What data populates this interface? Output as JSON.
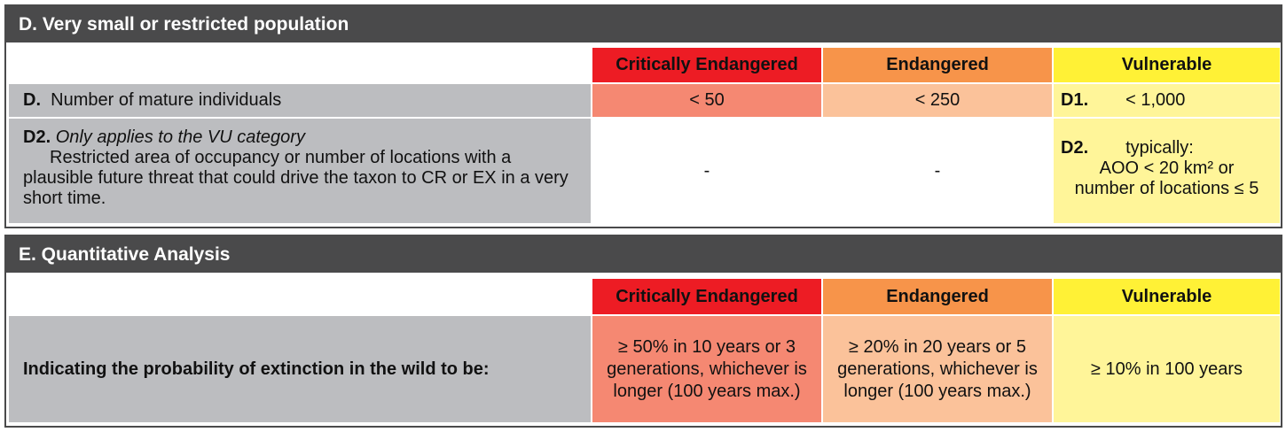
{
  "sectionD": {
    "title": "D. Very small or restricted population",
    "headers": {
      "cr": "Critically Endangered",
      "en": "Endangered",
      "vu": "Vulnerable"
    },
    "row1": {
      "code": "D.",
      "label": "Number of mature individuals",
      "cr": "< 50",
      "en": "< 250",
      "vu_code": "D1.",
      "vu": "< 1,000"
    },
    "row2": {
      "code": "D2.",
      "note": "Only applies to the VU category",
      "text": "Restricted area of occupancy or number of locations with a plausible future threat that could drive the taxon to CR or EX in a very short time.",
      "cr": "-",
      "en": "-",
      "vu_code": "D2.",
      "vu_line1": "typically:",
      "vu_line2": "AOO < 20 km² or",
      "vu_line3": "number of locations ≤ 5"
    }
  },
  "sectionE": {
    "title": "E. Quantitative Analysis",
    "headers": {
      "cr": "Critically Endangered",
      "en": "Endangered",
      "vu": "Vulnerable"
    },
    "row1": {
      "label": "Indicating the probability of extinction in the wild to be:",
      "cr": "≥ 50% in 10 years or 3 generations, whichever is longer (100 years max.)",
      "en": "≥ 20% in 20 years or 5 generations, whichever is longer (100 years max.)",
      "vu": "≥ 10% in 100 years"
    }
  }
}
